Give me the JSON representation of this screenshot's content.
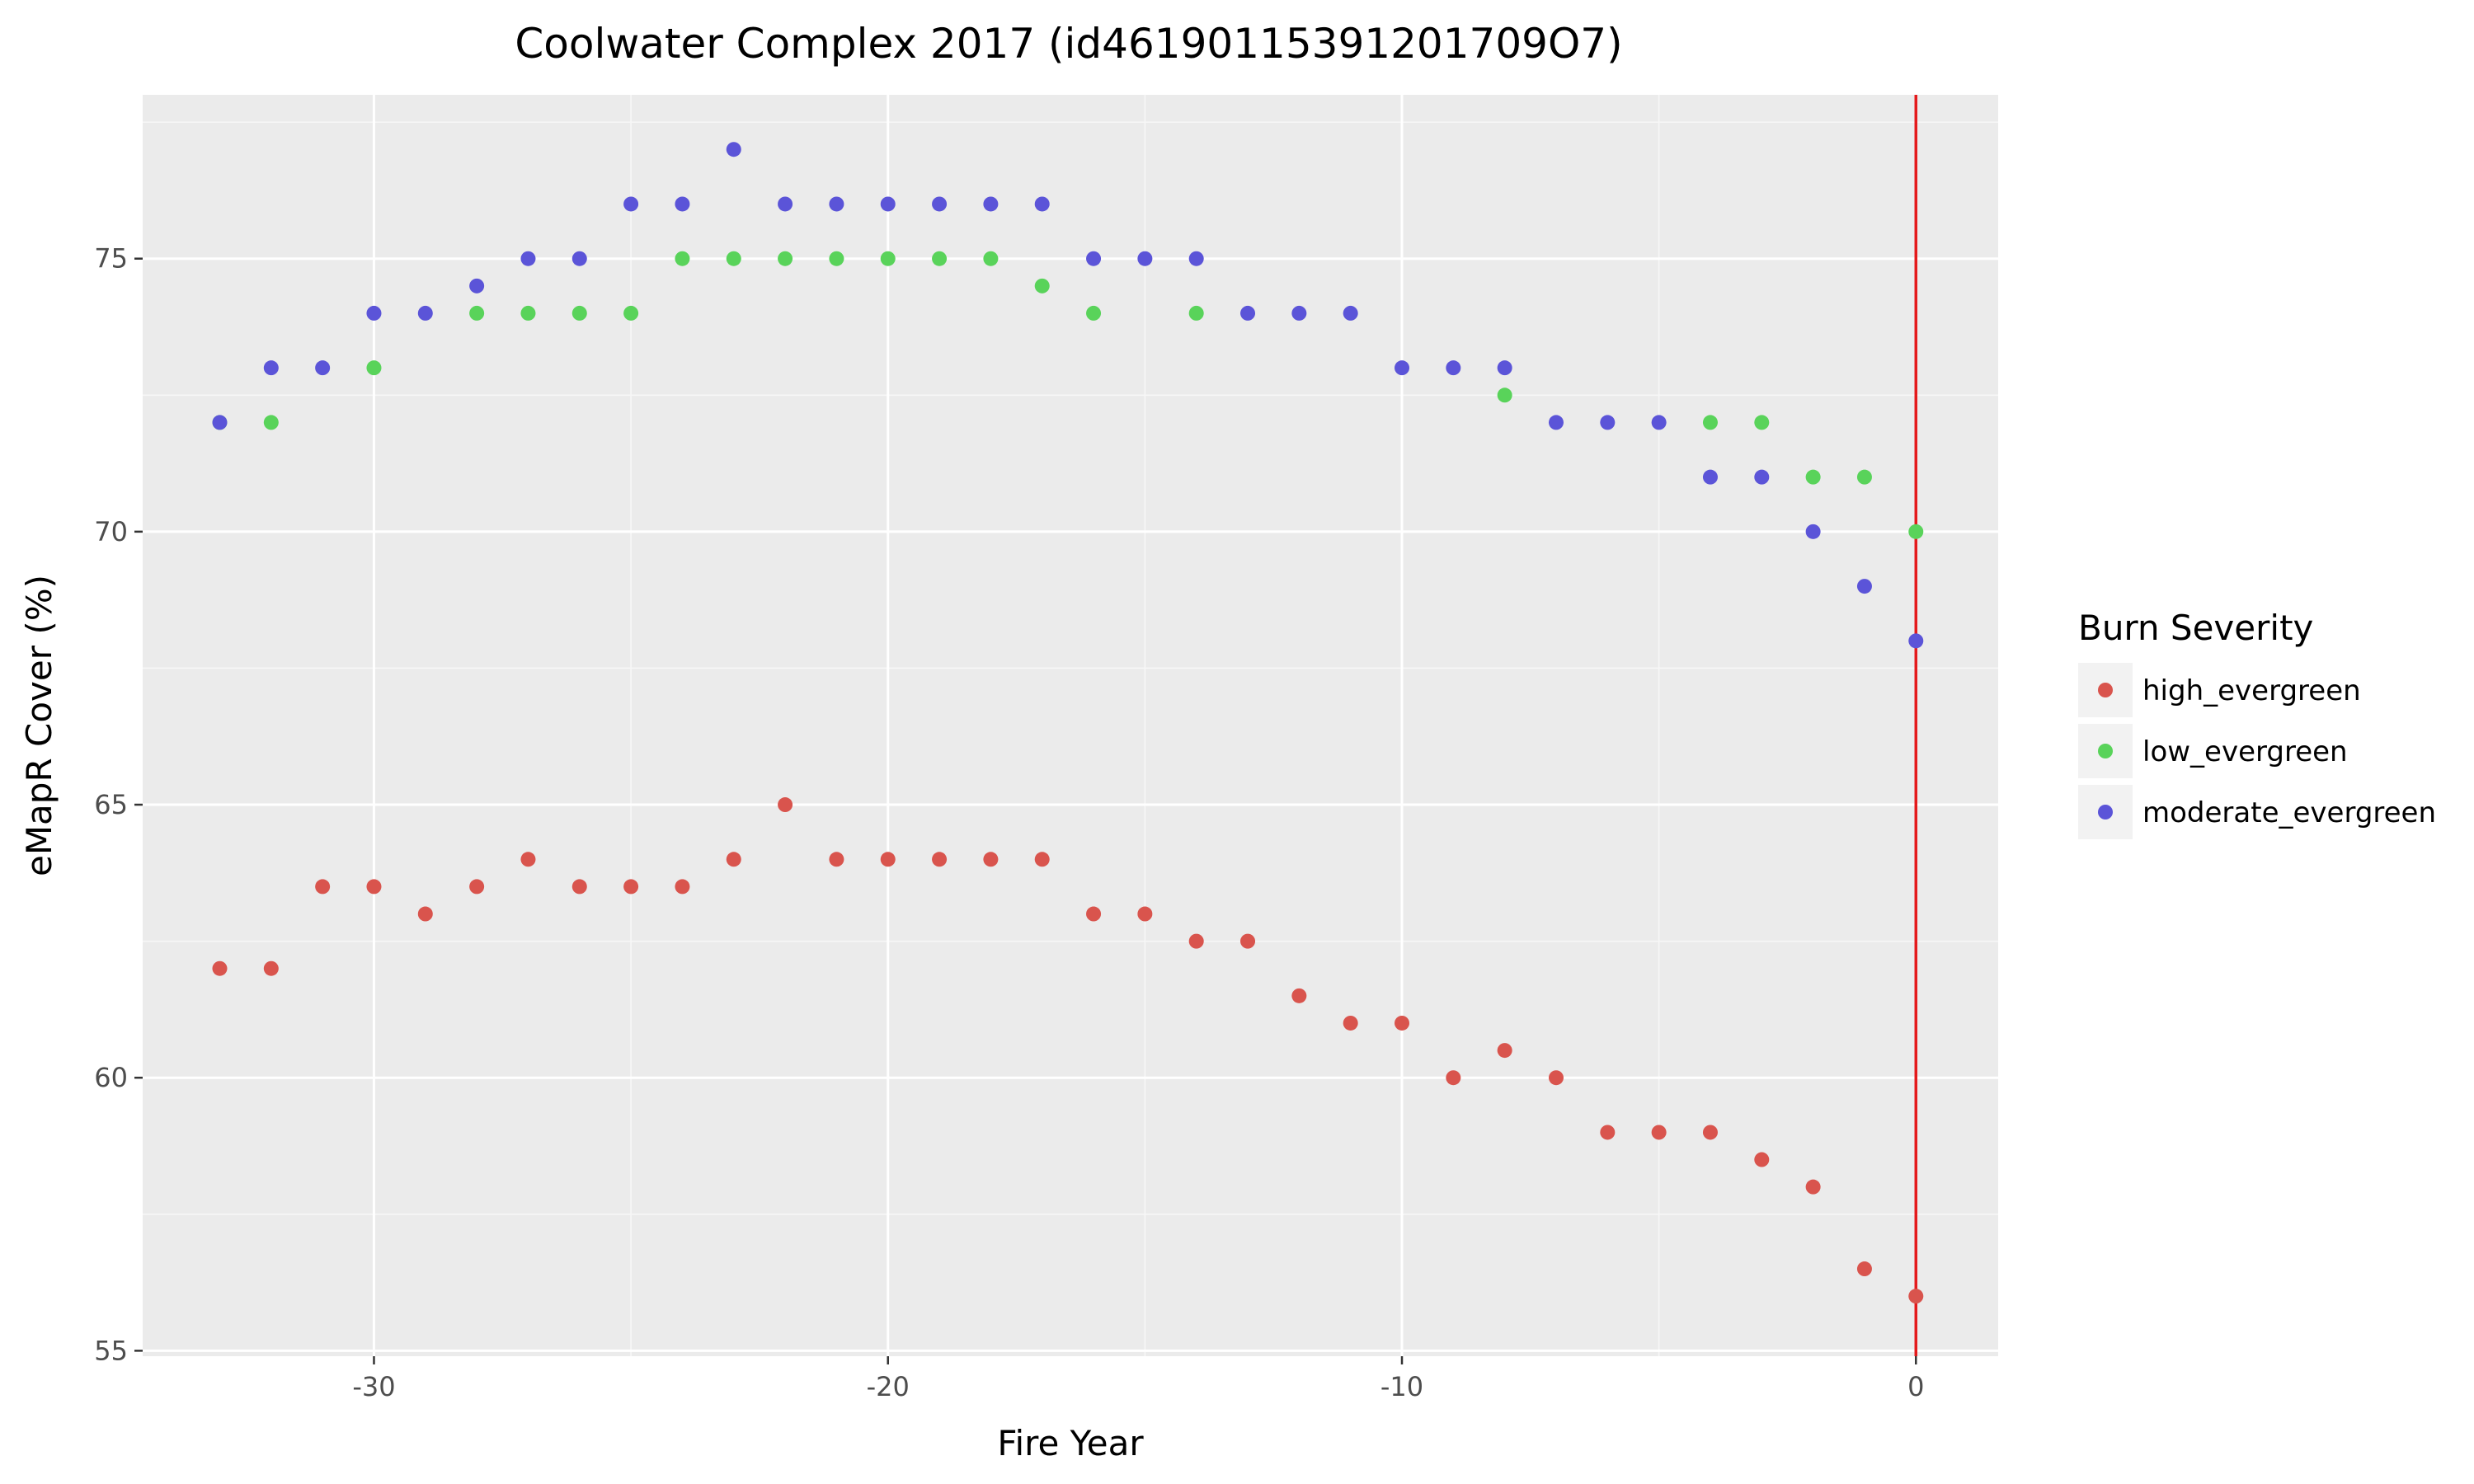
{
  "chart_data": {
    "type": "scatter",
    "title": "Coolwater Complex 2017 (id46190115391201709O7)",
    "xlabel": "Fire Year",
    "ylabel": "eMapR Cover (%)",
    "xlim": [
      -34.5,
      1.6
    ],
    "ylim": [
      54.9,
      78.0
    ],
    "x_ticks": [
      -30,
      -20,
      -10,
      0
    ],
    "x_tick_labels": [
      "-30",
      "-20",
      "-10",
      "0"
    ],
    "y_ticks": [
      55,
      60,
      65,
      70,
      75
    ],
    "y_tick_labels": [
      "55",
      "60",
      "65",
      "70",
      "75"
    ],
    "grid": true,
    "vline": {
      "x": 0,
      "color": "#e41a1c"
    },
    "legend": {
      "title": "Burn Severity",
      "position": "right"
    },
    "series": [
      {
        "name": "high_evergreen",
        "color": "#d9544d",
        "points": [
          [
            -33,
            62
          ],
          [
            -32,
            62
          ],
          [
            -31,
            63.5
          ],
          [
            -30,
            63.5
          ],
          [
            -29,
            63
          ],
          [
            -28,
            63.5
          ],
          [
            -27,
            64
          ],
          [
            -26,
            63.5
          ],
          [
            -25,
            63.5
          ],
          [
            -24,
            63.5
          ],
          [
            -23,
            64
          ],
          [
            -22,
            65
          ],
          [
            -21,
            64
          ],
          [
            -20,
            64
          ],
          [
            -19,
            64
          ],
          [
            -18,
            64
          ],
          [
            -17,
            64
          ],
          [
            -16,
            63
          ],
          [
            -15,
            63
          ],
          [
            -14,
            62.5
          ],
          [
            -13,
            62.5
          ],
          [
            -12,
            61.5
          ],
          [
            -11,
            61
          ],
          [
            -10,
            61
          ],
          [
            -9,
            60
          ],
          [
            -8,
            60.5
          ],
          [
            -7,
            60
          ],
          [
            -6,
            59
          ],
          [
            -5,
            59
          ],
          [
            -4,
            59
          ],
          [
            -3,
            58.5
          ],
          [
            -2,
            58
          ],
          [
            -1,
            56.5
          ],
          [
            0,
            56
          ]
        ]
      },
      {
        "name": "low_evergreen",
        "color": "#59d35a",
        "points": [
          [
            -33,
            72
          ],
          [
            -32,
            72
          ],
          [
            -30,
            73
          ],
          [
            -28,
            74
          ],
          [
            -27,
            74
          ],
          [
            -26,
            74
          ],
          [
            -25,
            74
          ],
          [
            -24,
            75
          ],
          [
            -23,
            75
          ],
          [
            -22,
            75
          ],
          [
            -21,
            75
          ],
          [
            -20,
            75
          ],
          [
            -19,
            75
          ],
          [
            -18,
            75
          ],
          [
            -17,
            74.5
          ],
          [
            -16,
            74
          ],
          [
            -14,
            74
          ],
          [
            -8,
            72.5
          ],
          [
            -4,
            72
          ],
          [
            -3,
            72
          ],
          [
            -2,
            71
          ],
          [
            -1,
            71
          ],
          [
            0,
            70
          ]
        ]
      },
      {
        "name": "moderate_evergreen",
        "color": "#5b54d8",
        "points": [
          [
            -33,
            72
          ],
          [
            -32,
            73
          ],
          [
            -31,
            73
          ],
          [
            -30,
            74
          ],
          [
            -29,
            74
          ],
          [
            -28,
            74.5
          ],
          [
            -27,
            75
          ],
          [
            -26,
            75
          ],
          [
            -25,
            76
          ],
          [
            -24,
            76
          ],
          [
            -23,
            77
          ],
          [
            -22,
            76
          ],
          [
            -21,
            76
          ],
          [
            -20,
            76
          ],
          [
            -19,
            76
          ],
          [
            -18,
            76
          ],
          [
            -17,
            76
          ],
          [
            -16,
            75
          ],
          [
            -15,
            75
          ],
          [
            -14,
            75
          ],
          [
            -13,
            74
          ],
          [
            -12,
            74
          ],
          [
            -11,
            74
          ],
          [
            -10,
            73
          ],
          [
            -9,
            73
          ],
          [
            -8,
            73
          ],
          [
            -7,
            72
          ],
          [
            -6,
            72
          ],
          [
            -5,
            72
          ],
          [
            -4,
            71
          ],
          [
            -3,
            71
          ],
          [
            -2,
            70
          ],
          [
            -1,
            69
          ],
          [
            0,
            68
          ]
        ]
      }
    ]
  }
}
